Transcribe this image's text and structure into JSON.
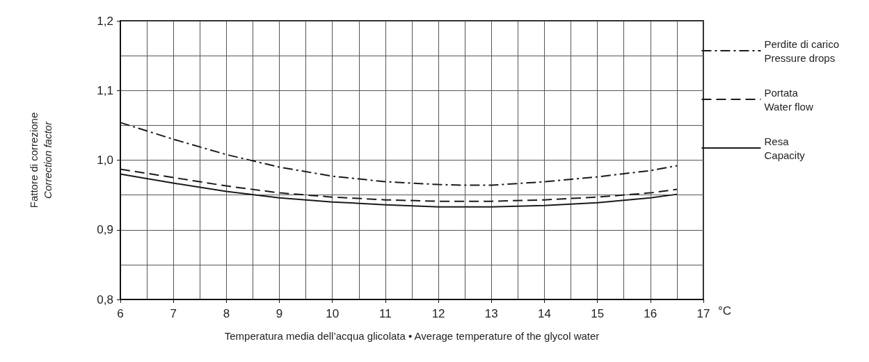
{
  "chart_data": {
    "type": "line",
    "xlabel": "Temperatura media dell’acqua glicolata • Average temperature of the glycol water",
    "ylabel": "Fattore di correzione\nCorrection factor",
    "annotations": [
      "°C"
    ],
    "x": [
      6,
      7,
      8,
      9,
      10,
      11,
      12,
      12.5,
      13,
      14,
      15,
      16,
      16.5
    ],
    "series": [
      {
        "name": "Perdite di carico\nPressure drops",
        "color": "#1a1a1a",
        "line_style": "dashdot",
        "values": [
          1.054,
          1.03,
          1.008,
          0.99,
          0.977,
          0.969,
          0.965,
          0.964,
          0.964,
          0.969,
          0.976,
          0.985,
          0.992
        ]
      },
      {
        "name": "Portata\nWater flow",
        "color": "#1a1a1a",
        "line_style": "dashed",
        "values": [
          0.987,
          0.975,
          0.963,
          0.953,
          0.947,
          0.943,
          0.941,
          0.941,
          0.941,
          0.943,
          0.947,
          0.953,
          0.958
        ]
      },
      {
        "name": "Resa\nCapacity",
        "color": "#1a1a1a",
        "line_style": "solid",
        "values": [
          0.98,
          0.967,
          0.955,
          0.946,
          0.94,
          0.936,
          0.933,
          0.933,
          0.933,
          0.935,
          0.939,
          0.946,
          0.951
        ]
      }
    ],
    "xlim": [
      6,
      17
    ],
    "xticks": [
      6,
      7,
      8,
      9,
      10,
      11,
      12,
      13,
      14,
      15,
      16,
      17
    ],
    "ylim": [
      0.8,
      1.2
    ],
    "yticks": [
      {
        "value": 0.8,
        "label": "0,8"
      },
      {
        "value": 0.9,
        "label": "0,9"
      },
      {
        "value": 1.0,
        "label": "1,0"
      },
      {
        "value": 1.1,
        "label": "1,1"
      },
      {
        "value": 1.2,
        "label": "1,2"
      }
    ],
    "grid": true,
    "legend": "right",
    "marker": "none"
  }
}
